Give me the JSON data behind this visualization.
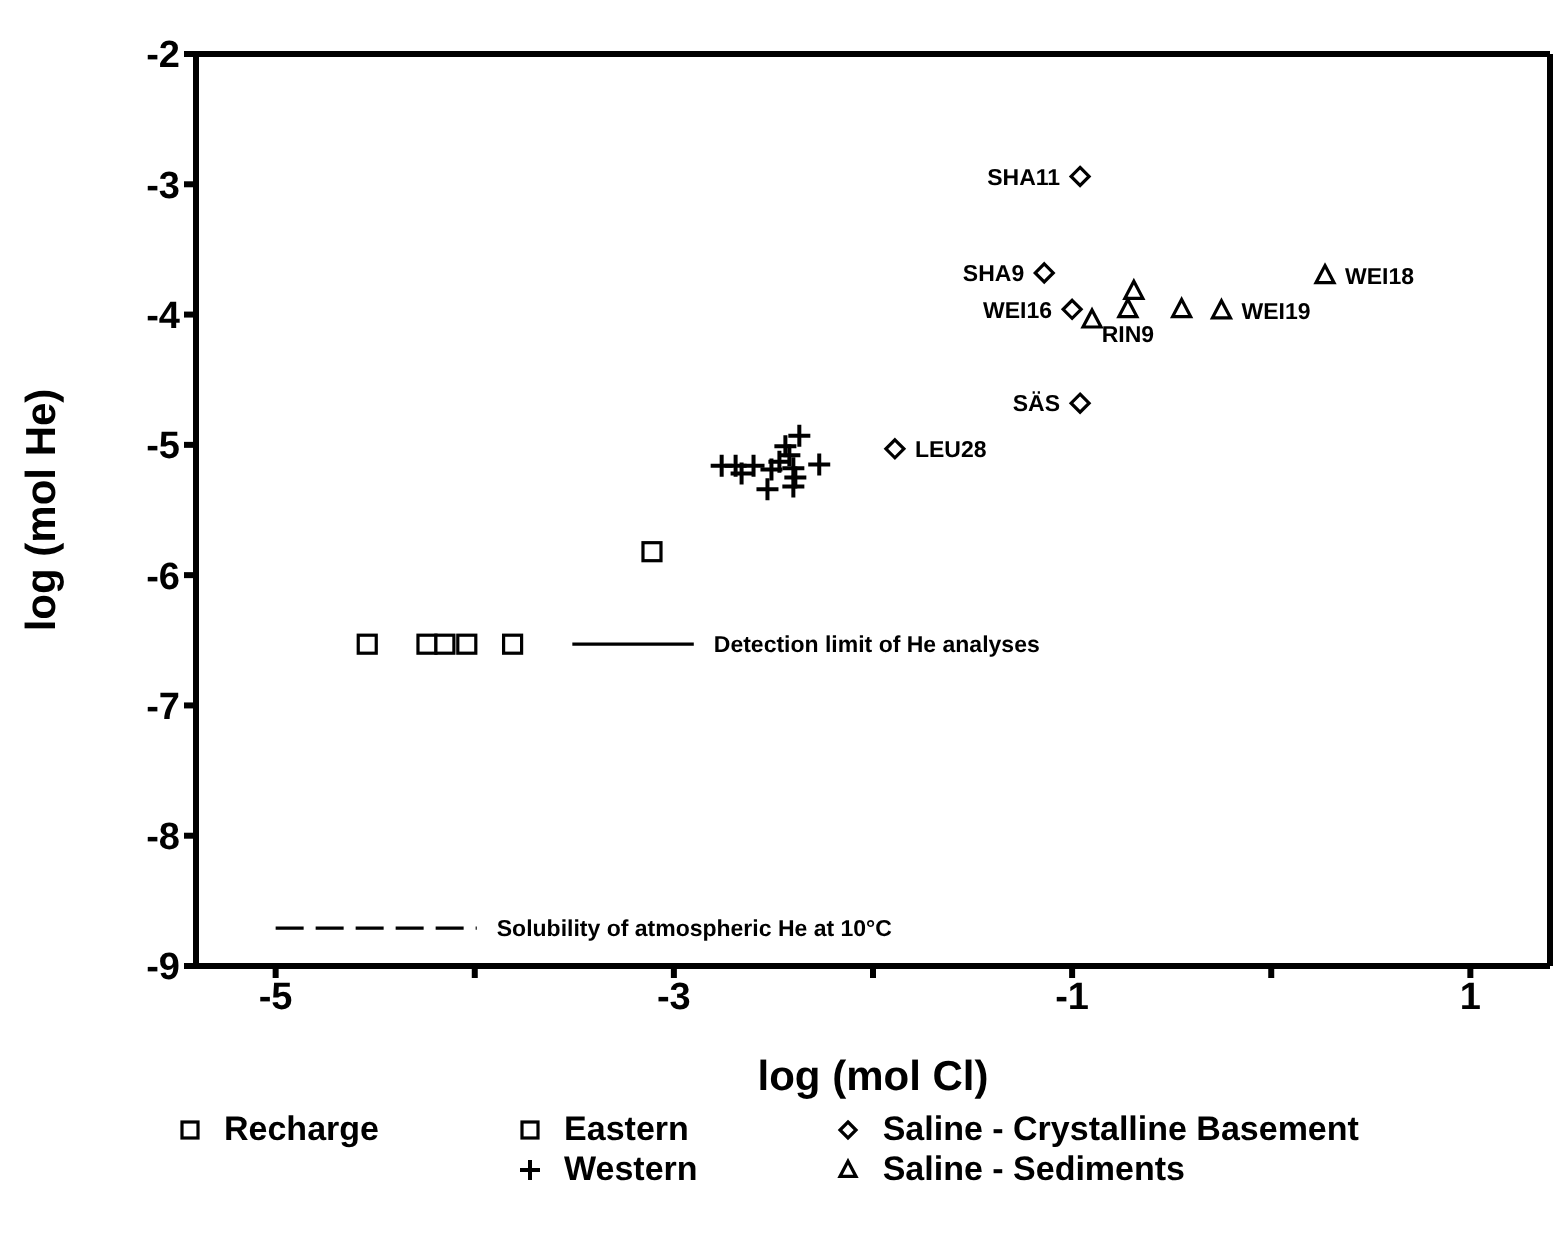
{
  "chart_data": {
    "type": "scatter",
    "xlabel": "log (mol Cl)",
    "ylabel": "log (mol He)",
    "xlim": [
      -5.4,
      1.4
    ],
    "xticks": [
      -5,
      {
        "value": -4,
        "label": null
      },
      -3,
      {
        "value": -2,
        "label": null
      },
      -1,
      {
        "value": 0,
        "label": null
      },
      1
    ],
    "ylim": [
      -9,
      -2
    ],
    "yticks": [
      -9,
      -8,
      -7,
      -6,
      -5,
      -4,
      -3,
      -2
    ],
    "grid": false,
    "legend": "bottom",
    "series": [
      {
        "name": "Recharge",
        "color": "#000000",
        "marker": "square",
        "x": [
          -4.54,
          -4.24,
          -4.15,
          -4.04,
          -3.81
        ],
        "values": [
          -6.53,
          -6.53,
          -6.53,
          -6.53,
          -6.53
        ]
      },
      {
        "name": "Eastern",
        "color": "#000000",
        "marker": "square",
        "x": [
          -3.11
        ],
        "values": [
          -5.82
        ]
      },
      {
        "name": "Western",
        "color": "#000000",
        "marker": "cross",
        "x": [
          -2.76,
          -2.69,
          -2.66,
          -2.6,
          -2.53,
          -2.51,
          -2.47,
          -2.44,
          -2.42,
          -2.4,
          -2.39,
          -2.37,
          -2.27,
          -2.4
        ],
        "values": [
          -5.16,
          -5.16,
          -5.22,
          -5.16,
          -5.34,
          -5.19,
          -5.13,
          -5.01,
          -5.08,
          -5.18,
          -5.25,
          -4.93,
          -5.15,
          -5.32
        ]
      },
      {
        "name": "Saline - Crystalline Basement",
        "color": "#000000",
        "marker": "diamond",
        "x": [
          -0.96,
          -1.14,
          -1.0,
          -0.96,
          -1.89
        ],
        "values": [
          -2.94,
          -3.68,
          -3.96,
          -4.68,
          -5.03
        ]
      },
      {
        "name": "Saline - Sediments",
        "color": "#000000",
        "marker": "triangle",
        "x": [
          -0.9,
          -0.69,
          -0.72,
          -0.45,
          -0.25,
          0.27
        ],
        "values": [
          -4.04,
          -3.82,
          -3.96,
          -3.96,
          -3.97,
          -3.7
        ]
      },
      {
        "type": "line",
        "color": "#000000",
        "line_style": "solid",
        "x": [
          -3.51,
          -2.9
        ],
        "values": [
          -6.53,
          -6.53
        ]
      },
      {
        "type": "line",
        "color": "#000000",
        "line_style": "dashed",
        "x": [
          -5.0,
          -3.99
        ],
        "values": [
          -8.71,
          -8.71
        ]
      }
    ],
    "annotations": [
      {
        "text": "SHA11",
        "x": -0.96,
        "y": -2.94
      },
      {
        "text": "SHA9",
        "x": -1.14,
        "y": -3.68
      },
      {
        "text": "WEI16",
        "x": -1.0,
        "y": -3.96
      },
      {
        "text": "SÄS",
        "x": -0.96,
        "y": -4.68
      },
      {
        "text": "LEU28",
        "x": -1.89,
        "y": -5.03
      },
      {
        "text": "WEI18",
        "x": 0.27,
        "y": -3.7
      },
      {
        "text": "WEI19",
        "x": -0.25,
        "y": -3.97
      },
      {
        "text": "RIN9",
        "x": -0.72,
        "y": -3.96
      },
      {
        "text": "Detection limit of He analyses",
        "x": -2.9,
        "y": -6.53
      },
      {
        "text": "Solubility of atmospheric He at 10°C",
        "x": -3.99,
        "y": -8.71
      }
    ]
  }
}
